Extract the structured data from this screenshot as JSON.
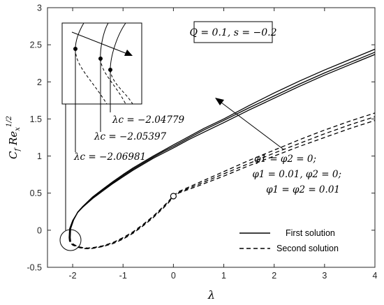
{
  "chart_data": {
    "type": "line",
    "title": "",
    "xlabel": "λ",
    "ylabel": "C_f Re_x^{1/2}",
    "xlim": [
      -2.5,
      4
    ],
    "ylim": [
      -0.5,
      3
    ],
    "xticks": [
      "-2",
      "-1",
      "0",
      "1",
      "2",
      "3",
      "4"
    ],
    "yticks": [
      "-0.5",
      "0",
      "0.5",
      "1",
      "1.5",
      "2",
      "2.5",
      "3"
    ],
    "xtick_values": [
      -2,
      -1,
      0,
      1,
      2,
      3,
      4
    ],
    "ytick_values": [
      -0.5,
      0,
      0.5,
      1,
      1.5,
      2,
      2.5,
      3
    ],
    "grid": false,
    "legend_position": "bottom-right",
    "legend": [
      {
        "label": "First solution",
        "style": "solid"
      },
      {
        "label": "Second solution",
        "style": "dashed"
      }
    ],
    "parameter_box": "Q = 0.1, s = −0.2",
    "annotation_lines": [
      "φ1 = φ2 = 0;",
      "φ1 = 0.01, φ2 = 0;",
      "φ1 = φ2 = 0.01"
    ],
    "critical_values": [
      {
        "label": "λc = −2.04779",
        "lambda": -2.04779
      },
      {
        "label": "λc = −2.05397",
        "lambda": -2.05397
      },
      {
        "label": "λc = −2.06981",
        "lambda": -2.06981
      }
    ],
    "first_solution": [
      {
        "x": [
          -2.06981,
          -2.06,
          -2.0,
          -1.9,
          -1.8,
          -1.6,
          -1.4,
          -1.2,
          -1.0,
          -0.8,
          -0.6,
          -0.4,
          -0.2,
          0.0,
          0.3,
          0.6,
          1.0,
          1.5,
          2.0,
          2.5,
          3.0,
          3.5,
          4.0
        ],
        "y": [
          -0.1,
          0.02,
          0.13,
          0.24,
          0.31,
          0.43,
          0.53,
          0.63,
          0.72,
          0.81,
          0.89,
          0.97,
          1.04,
          1.11,
          1.22,
          1.32,
          1.45,
          1.62,
          1.78,
          1.94,
          2.09,
          2.23,
          2.37
        ]
      },
      {
        "x": [
          -2.05397,
          -2.045,
          -1.99,
          -1.9,
          -1.8,
          -1.6,
          -1.4,
          -1.2,
          -1.0,
          -0.8,
          -0.6,
          -0.4,
          -0.2,
          0.0,
          0.3,
          0.6,
          1.0,
          1.5,
          2.0,
          2.5,
          3.0,
          3.5,
          4.0
        ],
        "y": [
          -0.1,
          0.02,
          0.13,
          0.24,
          0.315,
          0.44,
          0.545,
          0.64,
          0.735,
          0.825,
          0.905,
          0.985,
          1.06,
          1.13,
          1.24,
          1.35,
          1.48,
          1.65,
          1.81,
          1.97,
          2.12,
          2.26,
          2.4
        ]
      },
      {
        "x": [
          -2.04779,
          -2.04,
          -1.98,
          -1.9,
          -1.8,
          -1.6,
          -1.4,
          -1.2,
          -1.0,
          -0.8,
          -0.6,
          -0.4,
          -0.2,
          0.0,
          0.3,
          0.6,
          1.0,
          1.5,
          2.0,
          2.5,
          3.0,
          3.5,
          4.0
        ],
        "y": [
          -0.1,
          0.02,
          0.14,
          0.245,
          0.32,
          0.45,
          0.555,
          0.655,
          0.75,
          0.84,
          0.92,
          1.0,
          1.075,
          1.15,
          1.26,
          1.37,
          1.5,
          1.68,
          1.85,
          2.01,
          2.16,
          2.3,
          2.44
        ]
      }
    ],
    "second_solution": [
      {
        "x": [
          -2.06981,
          -2.06,
          -2.0,
          -1.9,
          -1.8,
          -1.7,
          -1.6,
          -1.4,
          -1.2,
          -1.0,
          -0.8,
          -0.6,
          -0.4,
          -0.2,
          -0.1,
          0.0,
          0.1,
          0.5,
          1.0,
          1.5,
          2.0,
          2.5,
          3.0,
          3.5,
          4.0
        ],
        "y": [
          -0.1,
          -0.16,
          -0.2,
          -0.23,
          -0.245,
          -0.25,
          -0.245,
          -0.22,
          -0.18,
          -0.12,
          -0.04,
          0.06,
          0.17,
          0.3,
          0.37,
          0.445,
          0.5,
          0.6,
          0.73,
          0.87,
          1.0,
          1.13,
          1.25,
          1.37,
          1.48
        ]
      },
      {
        "x": [
          -2.05397,
          -2.045,
          -1.99,
          -1.9,
          -1.8,
          -1.7,
          -1.6,
          -1.4,
          -1.2,
          -1.0,
          -0.8,
          -0.6,
          -0.4,
          -0.2,
          -0.1,
          0.0,
          0.1,
          0.5,
          1.0,
          1.5,
          2.0,
          2.5,
          3.0,
          3.5,
          4.0
        ],
        "y": [
          -0.1,
          -0.155,
          -0.195,
          -0.225,
          -0.24,
          -0.245,
          -0.24,
          -0.215,
          -0.17,
          -0.11,
          -0.03,
          0.07,
          0.18,
          0.31,
          0.38,
          0.455,
          0.51,
          0.62,
          0.76,
          0.9,
          1.04,
          1.17,
          1.3,
          1.42,
          1.53
        ]
      },
      {
        "x": [
          -2.04779,
          -2.04,
          -1.98,
          -1.9,
          -1.8,
          -1.7,
          -1.6,
          -1.4,
          -1.2,
          -1.0,
          -0.8,
          -0.6,
          -0.4,
          -0.2,
          -0.1,
          0.0,
          0.1,
          0.5,
          1.0,
          1.5,
          2.0,
          2.5,
          3.0,
          3.5,
          4.0
        ],
        "y": [
          -0.1,
          -0.15,
          -0.19,
          -0.22,
          -0.235,
          -0.24,
          -0.235,
          -0.21,
          -0.165,
          -0.1,
          -0.02,
          0.08,
          0.19,
          0.32,
          0.39,
          0.465,
          0.52,
          0.64,
          0.79,
          0.94,
          1.08,
          1.22,
          1.35,
          1.47,
          1.58
        ]
      }
    ],
    "marker": {
      "x": 0.0,
      "y": 0.46
    }
  }
}
